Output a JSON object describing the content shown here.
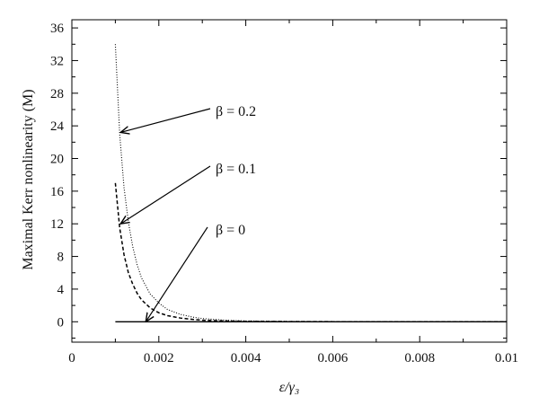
{
  "chart_data": {
    "type": "line",
    "xlabel": "ε/γ₃",
    "ylabel": "Maximal Kerr nonlinearity (M)",
    "xlim": [
      0,
      0.01
    ],
    "ylim": [
      -2.5,
      37
    ],
    "x_ticks": [
      0,
      0.002,
      0.004,
      0.006,
      0.008,
      0.01
    ],
    "x_tick_labels": [
      "0",
      "0.002",
      "0.004",
      "0.006",
      "0.008",
      "0.01"
    ],
    "y_ticks": [
      0,
      4,
      8,
      12,
      16,
      20,
      24,
      28,
      32,
      36
    ],
    "y_tick_labels": [
      "0",
      "4",
      "8",
      "12",
      "16",
      "20",
      "24",
      "28",
      "32",
      "36"
    ],
    "grid": false,
    "series": [
      {
        "name": "β = 0",
        "style": "solid",
        "color": "#000000",
        "x": [
          0.001,
          0.002,
          0.003,
          0.004,
          0.005,
          0.006,
          0.007,
          0.008,
          0.009,
          0.01
        ],
        "y": [
          0,
          0,
          0,
          0,
          0,
          0,
          0,
          0,
          0,
          0
        ]
      },
      {
        "name": "β = 0.1",
        "style": "dashed",
        "color": "#000000",
        "x": [
          0.001,
          0.0011,
          0.0012,
          0.0013,
          0.0014,
          0.0015,
          0.0016,
          0.0018,
          0.002,
          0.0022,
          0.0025,
          0.0028,
          0.003,
          0.0035,
          0.004,
          0.005,
          0.006,
          0.008,
          0.01
        ],
        "y": [
          17.0,
          11.5,
          8.2,
          6.0,
          4.6,
          3.5,
          2.7,
          1.7,
          1.1,
          0.75,
          0.45,
          0.28,
          0.2,
          0.1,
          0.05,
          0.02,
          0.01,
          0.0,
          0.0
        ]
      },
      {
        "name": "β = 0.2",
        "style": "dotted",
        "color": "#000000",
        "x": [
          0.001,
          0.0011,
          0.0012,
          0.0013,
          0.0014,
          0.0015,
          0.0016,
          0.0018,
          0.002,
          0.0022,
          0.0025,
          0.0028,
          0.003,
          0.0035,
          0.004,
          0.005,
          0.006,
          0.008,
          0.01
        ],
        "y": [
          34.0,
          23.0,
          16.4,
          12.2,
          9.2,
          7.0,
          5.4,
          3.4,
          2.3,
          1.5,
          0.9,
          0.55,
          0.4,
          0.2,
          0.1,
          0.04,
          0.02,
          0.0,
          0.0
        ]
      }
    ],
    "annotations": [
      {
        "text": "β = 0.2",
        "arrow_to": [
          0.00112,
          23.2
        ]
      },
      {
        "text": "β = 0.1",
        "arrow_to": [
          0.00112,
          12.0
        ]
      },
      {
        "text": "β = 0",
        "arrow_to": [
          0.0017,
          0.0
        ]
      }
    ]
  }
}
